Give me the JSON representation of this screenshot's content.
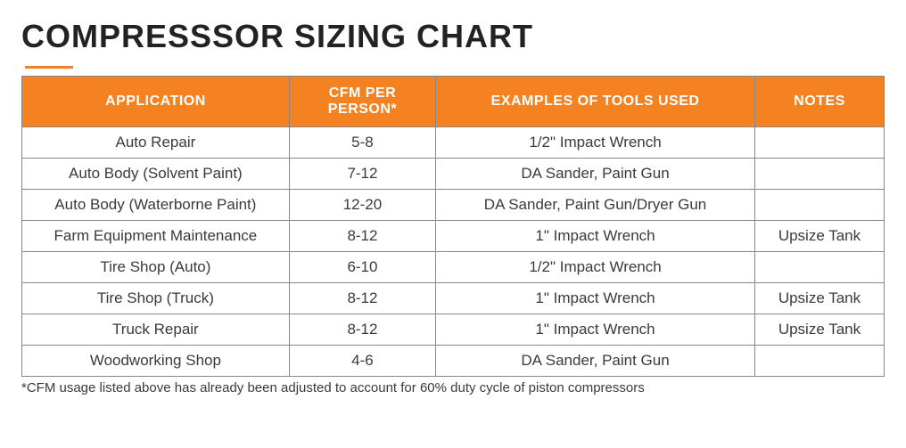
{
  "title": "COMPRESSSOR SIZING CHART",
  "colors": {
    "accent": "#f58220",
    "header_text": "#ffffff",
    "body_text": "#3a3a3a",
    "border": "#888888",
    "background": "#ffffff",
    "title_text": "#222222"
  },
  "typography": {
    "title_fontsize": 36,
    "title_weight": 900,
    "header_fontsize": 16,
    "cell_fontsize": 17,
    "footnote_fontsize": 15,
    "font_family": "Arial, Helvetica, sans-serif"
  },
  "table": {
    "type": "table",
    "column_widths_pct": [
      31,
      17,
      37,
      15
    ],
    "columns": [
      "APPLICATION",
      "CFM PER PERSON*",
      "EXAMPLES OF TOOLS USED",
      "NOTES"
    ],
    "rows": [
      {
        "application": "Auto Repair",
        "cfm": "5-8",
        "tools": "1/2\" Impact Wrench",
        "notes": ""
      },
      {
        "application": "Auto Body (Solvent Paint)",
        "cfm": "7-12",
        "tools": "DA Sander, Paint Gun",
        "notes": ""
      },
      {
        "application": "Auto Body (Waterborne Paint)",
        "cfm": "12-20",
        "tools": "DA Sander, Paint Gun/Dryer Gun",
        "notes": ""
      },
      {
        "application": "Farm Equipment Maintenance",
        "cfm": "8-12",
        "tools": "1\" Impact Wrench",
        "notes": "Upsize Tank"
      },
      {
        "application": "Tire Shop (Auto)",
        "cfm": "6-10",
        "tools": "1/2\" Impact Wrench",
        "notes": ""
      },
      {
        "application": "Tire Shop (Truck)",
        "cfm": "8-12",
        "tools": "1\" Impact Wrench",
        "notes": "Upsize Tank"
      },
      {
        "application": "Truck Repair",
        "cfm": "8-12",
        "tools": "1\" Impact Wrench",
        "notes": "Upsize Tank"
      },
      {
        "application": "Woodworking Shop",
        "cfm": "4-6",
        "tools": "DA Sander, Paint Gun",
        "notes": ""
      }
    ]
  },
  "footnote": "*CFM usage listed above has already been adjusted to account for 60% duty cycle of piston compressors"
}
